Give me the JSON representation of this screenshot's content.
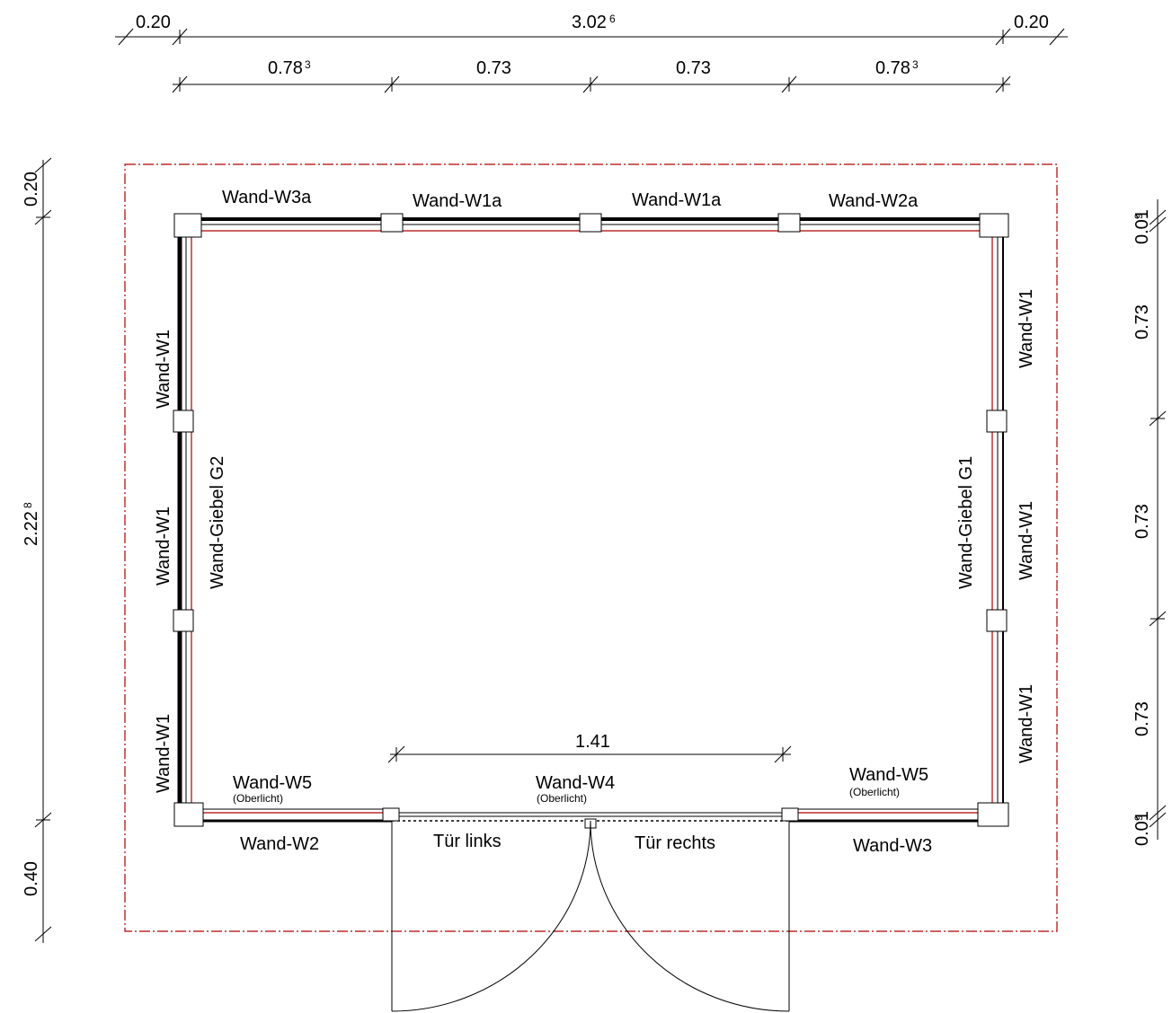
{
  "dimensions": {
    "top_row1": {
      "left": "0.20",
      "center": "3.02",
      "center_sup": "6",
      "right": "0.20"
    },
    "top_row2": {
      "seg1": "0.78",
      "seg1_sup": "3",
      "seg2": "0.73",
      "seg3": "0.73",
      "seg4": "0.78",
      "seg4_sup": "3"
    },
    "left": {
      "top": "0.20",
      "middle": "2.22",
      "middle_sup": "8",
      "bottom": "0.40"
    },
    "right": {
      "top": "0.01",
      "top_sup": "9",
      "seg1": "0.73",
      "seg2": "0.73",
      "seg3": "0.73",
      "bottom": "0.01",
      "bottom_sup": "9"
    },
    "door_opening": "1.41"
  },
  "walls": {
    "top": [
      "Wand-W3a",
      "Wand-W1a",
      "Wand-W1a",
      "Wand-W2a"
    ],
    "left_outer": [
      "Wand-W1",
      "Wand-W1",
      "Wand-W1"
    ],
    "left_gable": "Wand-Giebel G2",
    "right_outer": [
      "Wand-W1",
      "Wand-W1",
      "Wand-W1"
    ],
    "right_gable": "Wand-Giebel G1",
    "bottom_inner": [
      {
        "name": "Wand-W5",
        "note": "(Oberlicht)"
      },
      {
        "name": "Wand-W4",
        "note": "(Oberlicht)"
      },
      {
        "name": "Wand-W5",
        "note": "(Oberlicht)"
      }
    ],
    "bottom_outer": [
      "Wand-W2",
      "Wand-W3"
    ],
    "doors": [
      "Tür links",
      "Tür rechts"
    ]
  },
  "colors": {
    "boundary": "#b00000",
    "wall_line": "#b00000",
    "ink": "#000000"
  }
}
